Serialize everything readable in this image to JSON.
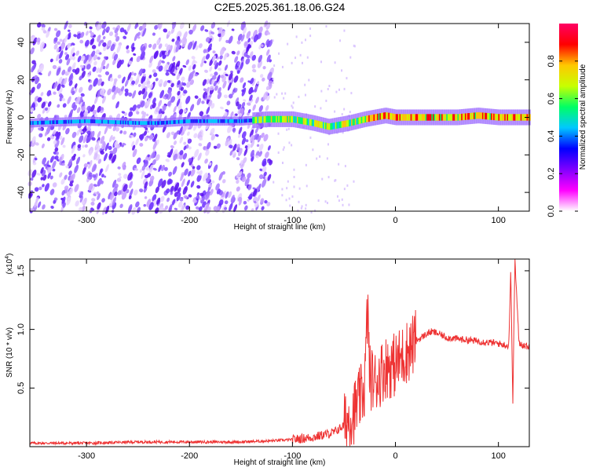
{
  "title": "C2E5.2025.361.18.06.G24",
  "chart_data": [
    {
      "type": "heatmap",
      "xlabel": "Height of straight line (km)",
      "ylabel": "Frequency (Hz)",
      "xlim": [
        -355,
        130
      ],
      "ylim": [
        -50,
        50
      ],
      "x_ticks": [
        -300,
        -200,
        -100,
        0,
        100
      ],
      "x_tick_labels": [
        "-300",
        "-200",
        "-100",
        "0",
        "100"
      ],
      "y_ticks": [
        -40,
        -20,
        0,
        20,
        40
      ],
      "y_tick_labels": [
        "-40",
        "-20",
        "0",
        "20",
        "40"
      ],
      "ridge_center_hz": [
        [
          -355,
          -3
        ],
        [
          -300,
          -2
        ],
        [
          -250,
          -3
        ],
        [
          -230,
          -3
        ],
        [
          -200,
          -2
        ],
        [
          -150,
          -2
        ],
        [
          -125,
          -1
        ],
        [
          -100,
          -1
        ],
        [
          -80,
          -3
        ],
        [
          -65,
          -5
        ],
        [
          -55,
          -4
        ],
        [
          -45,
          -3
        ],
        [
          -30,
          -1
        ],
        [
          -20,
          0
        ],
        [
          -10,
          1
        ],
        [
          0,
          0
        ],
        [
          30,
          0
        ],
        [
          60,
          0
        ],
        [
          80,
          1
        ],
        [
          100,
          0
        ],
        [
          115,
          0
        ],
        [
          130,
          0
        ]
      ],
      "colorbar": {
        "label": "Normalized spectral amplitude",
        "ticks": [
          0.0,
          0.2,
          0.4,
          0.6,
          0.8
        ],
        "tick_labels": [
          "0.0",
          "0.2",
          "0.4",
          "0.6",
          "0.8"
        ],
        "range": [
          0,
          1
        ],
        "colors": [
          "#ffffff",
          "#ff00ff",
          "#8000ff",
          "#0000ff",
          "#00c8ff",
          "#00ff64",
          "#c8ff00",
          "#ffc800",
          "#ff0000",
          "#ff0064"
        ]
      }
    },
    {
      "type": "line",
      "xlabel": "Height of straight line (km)",
      "ylabel": "SNR (10 * v/v)",
      "yscale_label": "(x10",
      "yscale_exponent": "4",
      "yscale_suffix": ")",
      "xlim": [
        -355,
        130
      ],
      "ylim": [
        0,
        1.6
      ],
      "x_ticks": [
        -300,
        -200,
        -100,
        0,
        100
      ],
      "x_tick_labels": [
        "-300",
        "-200",
        "-100",
        "0",
        "100"
      ],
      "y_ticks": [
        0.5,
        1.0,
        1.5
      ],
      "y_tick_labels": [
        "0.5",
        "1.0",
        "1.5"
      ],
      "line_color": "#ee3333",
      "series": [
        {
          "x": [
            -355,
            -300,
            -250,
            -200,
            -150,
            -120,
            -100,
            -80,
            -60,
            -50,
            -45,
            -40,
            -35,
            -30,
            -27,
            -25,
            -20,
            -10,
            0,
            10,
            20,
            30,
            35,
            40,
            50,
            60,
            70,
            80,
            90,
            100,
            105,
            110,
            112,
            114,
            116,
            120,
            130
          ],
          "values": [
            0.03,
            0.03,
            0.04,
            0.04,
            0.04,
            0.05,
            0.06,
            0.08,
            0.12,
            0.18,
            0.25,
            0.3,
            0.4,
            0.5,
            1.2,
            0.6,
            0.55,
            0.68,
            0.7,
            0.8,
            0.9,
            0.96,
            0.98,
            0.97,
            0.93,
            0.92,
            0.91,
            0.9,
            0.89,
            0.88,
            0.87,
            0.86,
            1.5,
            0.38,
            1.6,
            0.88,
            0.85
          ]
        }
      ]
    }
  ]
}
